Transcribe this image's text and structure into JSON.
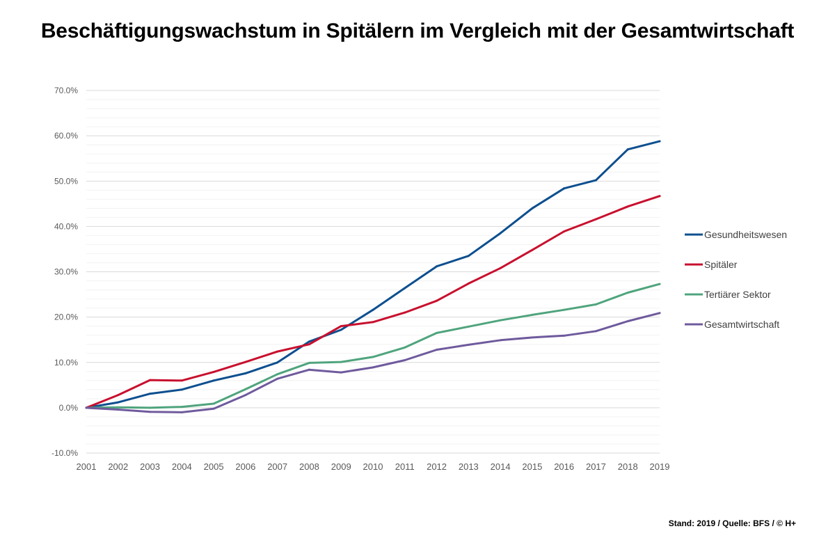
{
  "title": "Beschäftigungswachstum in Spitälern im Vergleich mit der Gesamtwirtschaft",
  "source": "Stand: 2019 / Quelle: BFS / © H+",
  "chart_data": {
    "type": "line",
    "title": "Beschäftigungswachstum in Spitälern im Vergleich mit der Gesamtwirtschaft",
    "xlabel": "",
    "ylabel": "",
    "x": [
      "2001",
      "2002",
      "2003",
      "2004",
      "2005",
      "2006",
      "2007",
      "2008",
      "2009",
      "2010",
      "2011",
      "2012",
      "2013",
      "2014",
      "2015",
      "2016",
      "2017",
      "2018",
      "2019"
    ],
    "ylim": [
      -10,
      70
    ],
    "yticks": [
      -10,
      0,
      10,
      20,
      30,
      40,
      50,
      60,
      70
    ],
    "ytick_labels": [
      "-10.0%",
      "0.0%",
      "10.0%",
      "20.0%",
      "30.0%",
      "40.0%",
      "50.0%",
      "60.0%",
      "70.0%"
    ],
    "minor_grid_step": 2,
    "legend_position": "right",
    "series": [
      {
        "name": "Gesundheitswesen",
        "color": "#0d4f8f",
        "values": [
          0,
          1.2,
          3.1,
          4.0,
          6.0,
          7.6,
          10.0,
          14.6,
          17.2,
          21.6,
          26.4,
          31.2,
          33.5,
          38.5,
          44.0,
          48.4,
          50.2,
          57.0,
          58.8
        ]
      },
      {
        "name": "Spitäler",
        "color": "#c8102e",
        "values": [
          0,
          2.8,
          6.1,
          6.0,
          7.9,
          10.1,
          12.4,
          14.0,
          18.0,
          18.9,
          21.0,
          23.6,
          27.4,
          30.8,
          34.8,
          38.9,
          41.6,
          44.4,
          46.7
        ]
      },
      {
        "name": "Tertiärer Sektor",
        "color": "#4fa47d",
        "values": [
          0,
          0.1,
          0.0,
          0.2,
          0.9,
          4.1,
          7.4,
          9.9,
          10.1,
          11.2,
          13.3,
          16.5,
          17.9,
          19.3,
          20.5,
          21.6,
          22.8,
          25.4,
          27.3
        ]
      },
      {
        "name": "Gesamtwirtschaft",
        "color": "#6f5a9d",
        "values": [
          0,
          -0.4,
          -0.9,
          -1.0,
          -0.2,
          2.8,
          6.4,
          8.4,
          7.8,
          8.9,
          10.5,
          12.8,
          13.9,
          14.9,
          15.5,
          15.9,
          16.9,
          19.1,
          20.9
        ]
      }
    ]
  }
}
